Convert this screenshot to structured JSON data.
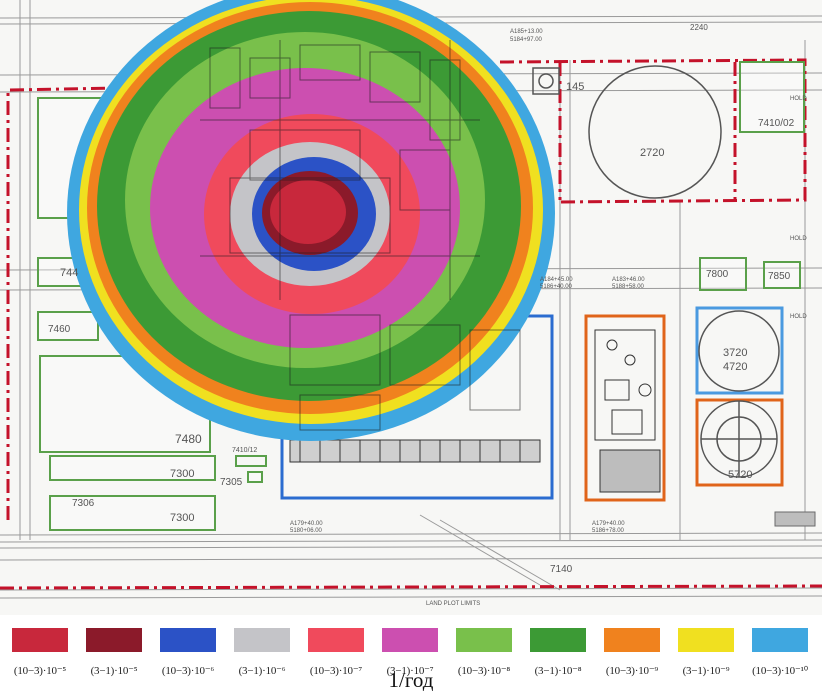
{
  "plan": {
    "labels": {
      "l2240": "2240",
      "l145": "145",
      "l2720": "2720",
      "l7410_02": "7410/02",
      "l744": "744",
      "l7460": "7460",
      "l7480": "7480",
      "l7300a": "7300",
      "l7300b": "7300",
      "l7305": "7305",
      "l7306": "7306",
      "l7410_12": "7410/12",
      "l7800": "7800",
      "l7850": "7850",
      "l3720": "3720",
      "l4720": "4720",
      "l5720": "5720",
      "l7140": "7140",
      "hold1": "HOLD",
      "hold2": "HOLD",
      "hold3": "HOLD",
      "land_plot": "LAND PLOT LIMITS",
      "coord1a": "A185+13.00",
      "coord1b": "5184+97.00",
      "coord2a": "A184+45.00",
      "coord2b": "5186+40.00",
      "coord3a": "A183+46.00",
      "coord3b": "5188+58.00",
      "coord4a": "A179+40.00",
      "coord4b": "5180+06.00",
      "coord5a": "A179+40.00",
      "coord5b": "5186+78.00"
    }
  },
  "risk_zones": [
    {
      "name": "(10–3)·10⁻¹⁰",
      "color": "#3fa7e0"
    },
    {
      "name": "(3–1)·10⁻⁹",
      "color": "#f0e020"
    },
    {
      "name": "(10–3)·10⁻⁹",
      "color": "#f0821e"
    },
    {
      "name": "(3–1)·10⁻⁸",
      "color": "#3c9a35"
    },
    {
      "name": "(10–3)·10⁻⁸",
      "color": "#79c04b"
    },
    {
      "name": "(3–1)·10⁻⁷",
      "color": "#cc4fb0"
    },
    {
      "name": "(10–3)·10⁻⁷",
      "color": "#f04a5c"
    },
    {
      "name": "(3–1)·10⁻⁶",
      "color": "#c4c4c8"
    },
    {
      "name": "(10–3)·10⁻⁶",
      "color": "#2b52c6"
    },
    {
      "name": "(3–1)·10⁻⁵",
      "color": "#8b1a2a"
    },
    {
      "name": "(10–3)·10⁻⁵",
      "color": "#c8283c"
    }
  ],
  "legend": {
    "items": [
      {
        "label": "(10−3)·10⁻⁵",
        "color": "#c8283c"
      },
      {
        "label": "(3−1)·10⁻⁵",
        "color": "#8b1a2a"
      },
      {
        "label": "(10−3)·10⁻⁶",
        "color": "#2b52c6"
      },
      {
        "label": "(3−1)·10⁻⁶",
        "color": "#c4c4c8"
      },
      {
        "label": "(10−3)·10⁻⁷",
        "color": "#f04a5c"
      },
      {
        "label": "(3−1)·10⁻⁷",
        "color": "#cc4fb0"
      },
      {
        "label": "(10−3)·10⁻⁸",
        "color": "#79c04b"
      },
      {
        "label": "(3−1)·10⁻⁸",
        "color": "#3c9a35"
      },
      {
        "label": "(10−3)·10⁻⁹",
        "color": "#f0821e"
      },
      {
        "label": "(3−1)·10⁻⁹",
        "color": "#f0e020"
      },
      {
        "label": "(10−3)·10⁻¹⁰",
        "color": "#3fa7e0"
      }
    ],
    "unit": "1/год"
  }
}
